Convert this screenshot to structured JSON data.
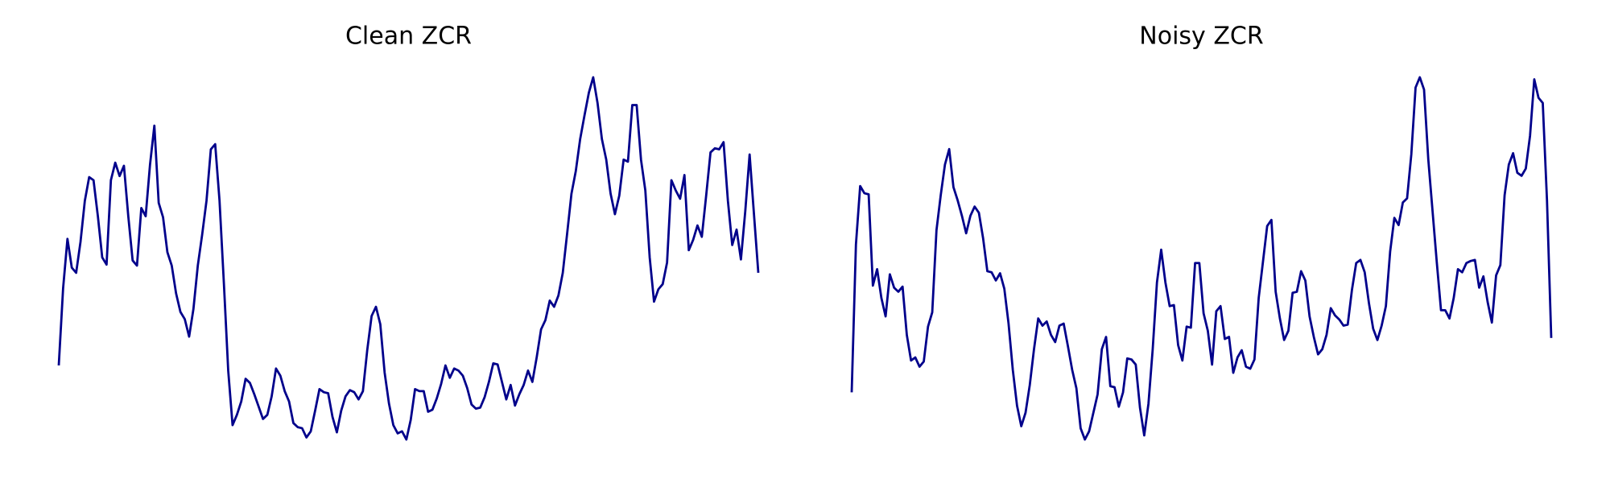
{
  "chart_data": [
    {
      "type": "line",
      "title": "Clean ZCR",
      "series": [
        {
          "color": "#00008b",
          "values": [
            75,
            150,
            198,
            170,
            165,
            195,
            235,
            258,
            255,
            220,
            180,
            173,
            255,
            272,
            259,
            269,
            220,
            177,
            172,
            228,
            220,
            270,
            308,
            233,
            219,
            185,
            172,
            145,
            127,
            120,
            103,
            130,
            172,
            202,
            235,
            285,
            290,
            235,
            155,
            70,
            17,
            27,
            40,
            62,
            58,
            47,
            35,
            23,
            27,
            45,
            72,
            65,
            50,
            40,
            19,
            15,
            14,
            5,
            11,
            31,
            52,
            49,
            48,
            25,
            10,
            31,
            45,
            51,
            49,
            42,
            50,
            90,
            123,
            132,
            115,
            68,
            38,
            17,
            9,
            11,
            3,
            22,
            52,
            50,
            50,
            30,
            32,
            43,
            57,
            75,
            63,
            72,
            70,
            65,
            53,
            37,
            33,
            34,
            44,
            59,
            77,
            76,
            59,
            42,
            56,
            36,
            47,
            56,
            70,
            59,
            83,
            110,
            119,
            138,
            132,
            143,
            165,
            203,
            242,
            264,
            295,
            318,
            340,
            355,
            330,
            295,
            275,
            242,
            222,
            240,
            275,
            273,
            328,
            328,
            275,
            245,
            180,
            137,
            149,
            154,
            175,
            255,
            245,
            237,
            260,
            187,
            197,
            211,
            200,
            240,
            282,
            286,
            285,
            292,
            235,
            192,
            207,
            178,
            225,
            280,
            222,
            165
          ]
        }
      ]
    },
    {
      "type": "line",
      "title": "Noisy ZCR",
      "series": [
        {
          "color": "#00008b",
          "values": [
            48,
            192,
            249,
            242,
            241,
            152,
            168,
            140,
            122,
            163,
            150,
            146,
            151,
            104,
            79,
            82,
            73,
            78,
            112,
            126,
            206,
            240,
            270,
            285,
            248,
            235,
            220,
            203,
            220,
            229,
            223,
            198,
            166,
            165,
            157,
            164,
            149,
            115,
            70,
            35,
            15,
            28,
            55,
            90,
            120,
            113,
            117,
            104,
            97,
            113,
            115,
            93,
            70,
            52,
            13,
            2,
            10,
            28,
            46,
            90,
            102,
            54,
            53,
            34,
            48,
            81,
            80,
            75,
            33,
            6,
            37,
            90,
            155,
            187,
            155,
            132,
            133,
            94,
            79,
            112,
            111,
            174,
            174,
            125,
            108,
            75,
            127,
            132,
            100,
            102,
            67,
            82,
            89,
            73,
            71,
            80,
            140,
            175,
            210,
            216,
            146,
            120,
            99,
            108,
            145,
            146,
            166,
            157,
            122,
            102,
            85,
            90,
            104,
            130,
            123,
            119,
            113,
            114,
            148,
            174,
            177,
            165,
            135,
            110,
            99,
            113,
            132,
            185,
            218,
            211,
            233,
            237,
            280,
            345,
            355,
            343,
            275,
            225,
            175,
            128,
            128,
            120,
            140,
            168,
            165,
            174,
            176,
            177,
            150,
            161,
            136,
            116,
            162,
            172,
            240,
            270,
            281,
            262,
            259,
            266,
            298,
            353,
            335,
            330,
            235,
            101
          ]
        }
      ]
    }
  ]
}
